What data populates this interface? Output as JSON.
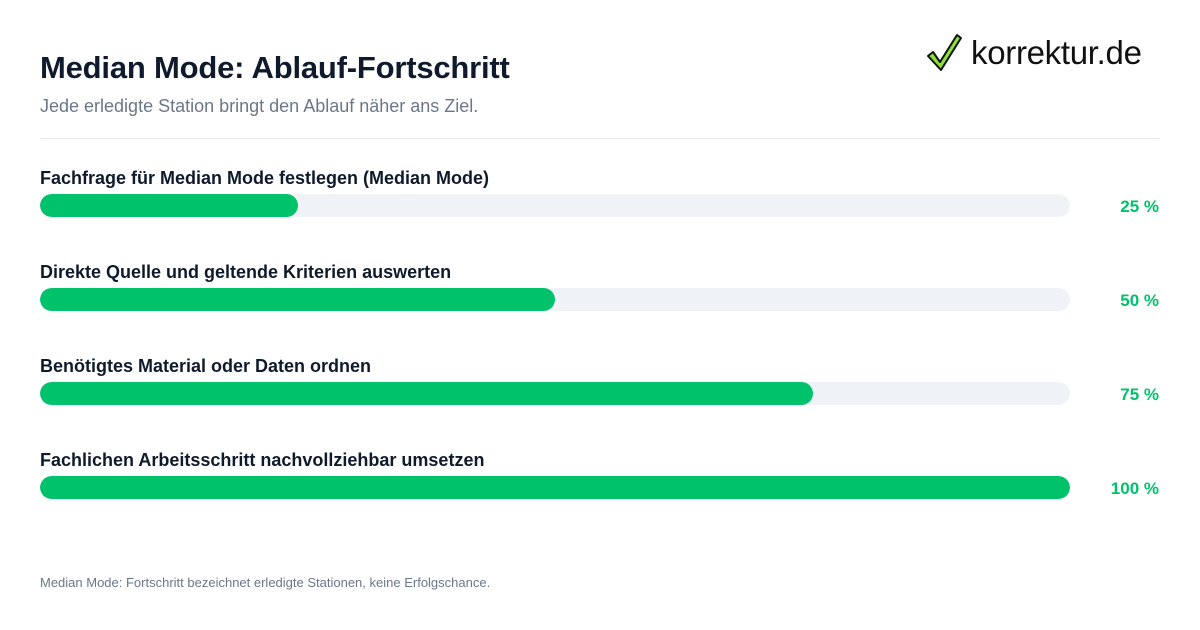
{
  "header": {
    "title": "Median Mode: Ablauf-Fortschritt",
    "subtitle": "Jede erledigte Station bringt den Ablauf näher ans Ziel."
  },
  "logo": {
    "text": "korrektur.de",
    "icon": "checkmark-icon",
    "check_color": "#2e9e2e"
  },
  "colors": {
    "accent": "#00c26a",
    "track": "#eff3f8",
    "title": "#0f1b2d",
    "muted": "#6b7789"
  },
  "chart_data": {
    "type": "bar",
    "orientation": "horizontal",
    "categories": [
      "Fachfrage für Median Mode festlegen (Median Mode)",
      "Direkte Quelle und geltende Kriterien auswerten",
      "Benötigtes Material oder Daten ordnen",
      "Fachlichen Arbeitsschritt nachvollziehbar umsetzen"
    ],
    "values": [
      25,
      50,
      75,
      100
    ],
    "value_labels": [
      "25 %",
      "50 %",
      "75 %",
      "100 %"
    ],
    "xlim": [
      0,
      100
    ],
    "grid": false
  },
  "footnote": "Median Mode: Fortschritt bezeichnet erledigte Stationen, keine Erfolgschance."
}
